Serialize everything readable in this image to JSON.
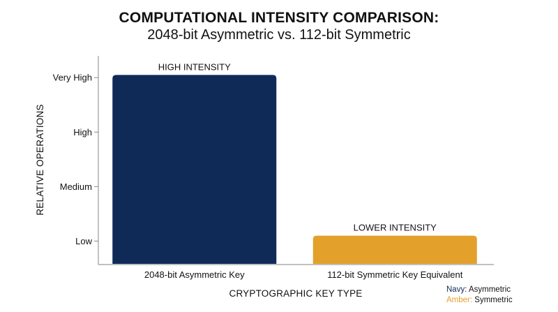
{
  "title": "COMPUTATIONAL INTENSITY COMPARISON:",
  "subtitle": "2048-bit Asymmetric vs. 112-bit Symmetric",
  "legend": [
    {
      "key": "Navy:",
      "label": "Asymmetric",
      "color": "#0f2a57"
    },
    {
      "key": "Amber:",
      "label": "Symmetric",
      "color": "#e3a12c"
    }
  ],
  "chart_data": {
    "type": "bar",
    "categories": [
      "2048-bit Asymmetric Key",
      "112-bit Symmetric Key Equivalent"
    ],
    "values": [
      3.05,
      0.1
    ],
    "bar_labels": [
      "HIGH INTENSITY",
      "LOWER INTENSITY"
    ],
    "colors": [
      "#0f2a57",
      "#e3a12c"
    ],
    "yticks": [
      {
        "value": 0,
        "label": "Low"
      },
      {
        "value": 1,
        "label": "Medium"
      },
      {
        "value": 2,
        "label": "High"
      },
      {
        "value": 3,
        "label": "Very High"
      }
    ],
    "ylim": [
      -0.43,
      3.4
    ],
    "xlabel": "CRYPTOGRAPHIC KEY TYPE",
    "ylabel": "RELATIVE OPERATIONS",
    "grid": false
  }
}
